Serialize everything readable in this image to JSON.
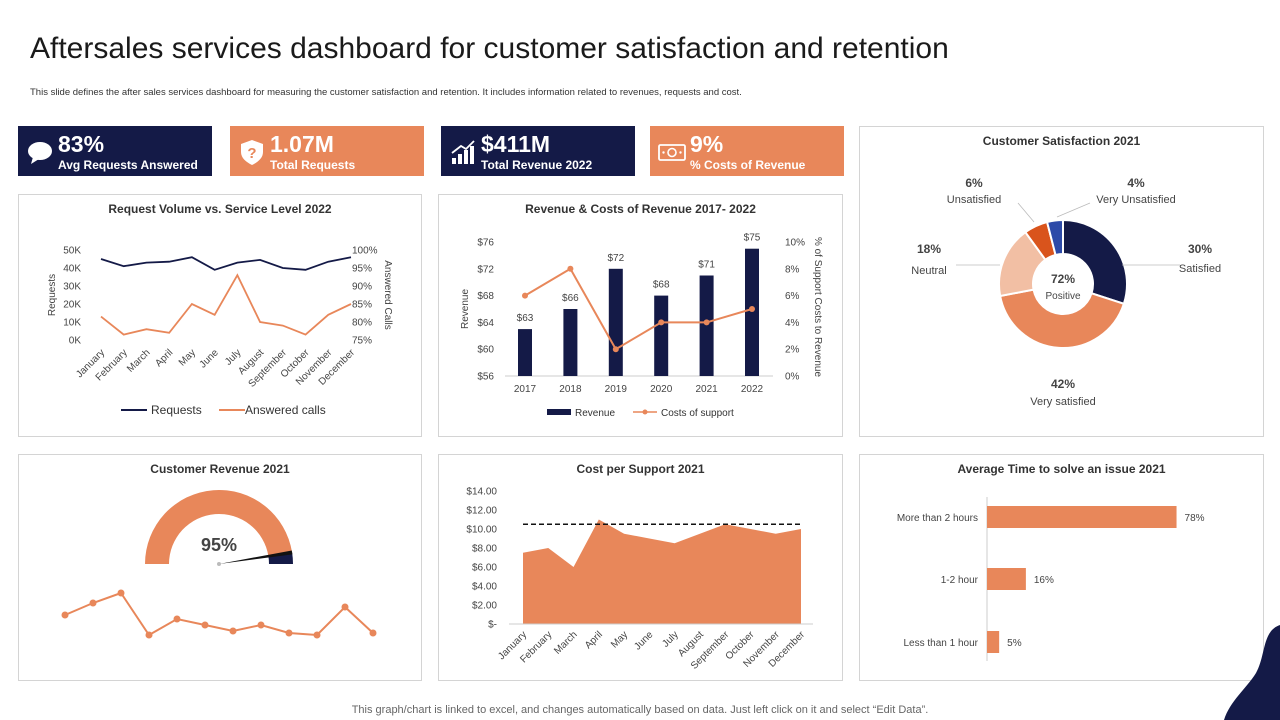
{
  "title": "Aftersales services dashboard for customer satisfaction and retention",
  "subtitle": "This slide defines the after sales services dashboard for measuring the customer satisfaction and retention. It includes information related to revenues, requests and cost.",
  "kpis": [
    {
      "value": "83%",
      "label": "Avg Requests Answered",
      "icon": "chat-bubble-icon",
      "color": "#141a47"
    },
    {
      "value": "1.07M",
      "label": "Total Requests",
      "icon": "shield-question-icon",
      "color": "#e8875a"
    },
    {
      "value": "$411M",
      "label": "Total Revenue 2022",
      "icon": "bar-growth-icon",
      "color": "#141a47"
    },
    {
      "value": "9%",
      "label": "% Costs of Revenue",
      "icon": "money-bill-icon",
      "color": "#e8875a"
    }
  ],
  "colors": {
    "navy": "#141a47",
    "orange": "#e8875a",
    "light_orange": "#f2bfa4",
    "dark_orange": "#d9541c",
    "blue": "#2d4aa8"
  },
  "footnote": "This graph/chart is linked to excel, and changes automatically based on data. Just left click on it and select “Edit Data”.",
  "chart_data": [
    {
      "id": "request-volume",
      "type": "line",
      "title": "Request Volume vs. Service Level 2022",
      "categories": [
        "January",
        "February",
        "March",
        "April",
        "May",
        "June",
        "July",
        "August",
        "September",
        "October",
        "November",
        "December"
      ],
      "ylabel": "Requests",
      "y2label": "Answered Calls",
      "ylim": [
        0,
        50000
      ],
      "y2lim": [
        75,
        100
      ],
      "yticks": [
        "0K",
        "10K",
        "20K",
        "30K",
        "40K",
        "50K"
      ],
      "y2ticks": [
        "75%",
        "80%",
        "85%",
        "90%",
        "95%",
        "100%"
      ],
      "series": [
        {
          "name": "Requests",
          "axis": "left",
          "values": [
            45000,
            41000,
            43000,
            43500,
            46000,
            39000,
            43000,
            44500,
            40000,
            39000,
            43500,
            46000
          ]
        },
        {
          "name": "Answered calls",
          "axis": "right",
          "values": [
            81.5,
            76.5,
            78,
            77,
            85,
            82,
            93,
            80,
            79,
            76.5,
            82,
            85
          ]
        }
      ],
      "legend": "bottom"
    },
    {
      "id": "revenue-costs",
      "type": "bar",
      "title": "Revenue & Costs of Revenue 2017- 2022",
      "categories": [
        "2017",
        "2018",
        "2019",
        "2020",
        "2021",
        "2022"
      ],
      "ylabel": "Revenue",
      "y2label": "% of Support Costs to Revenue",
      "ylim": [
        56,
        76
      ],
      "y2lim": [
        0,
        10
      ],
      "yticks": [
        "$56",
        "$60",
        "$64",
        "$68",
        "$72",
        "$76"
      ],
      "y2ticks": [
        "0%",
        "2%",
        "4%",
        "6%",
        "8%",
        "10%"
      ],
      "bar_labels": [
        "$63",
        "$66",
        "$72",
        "$68",
        "$71",
        "$75"
      ],
      "series": [
        {
          "name": "Revenue",
          "type": "bar",
          "values": [
            63,
            66,
            72,
            68,
            71,
            75
          ]
        },
        {
          "name": "Costs of support",
          "type": "line",
          "axis": "right",
          "values": [
            6,
            8,
            2,
            4,
            4,
            5
          ]
        }
      ],
      "legend": "bottom"
    },
    {
      "id": "customer-satisfaction",
      "type": "pie",
      "title": "Customer Satisfaction 2021",
      "center_value": "72%",
      "center_label": "Positive",
      "slices": [
        {
          "label": "Satisfied",
          "value": 30,
          "value_label": "30%"
        },
        {
          "label": "Very satisfied",
          "value": 42,
          "value_label": "42%"
        },
        {
          "label": "Neutral",
          "value": 18,
          "value_label": "18%"
        },
        {
          "label": "Unsatisfied",
          "value": 6,
          "value_label": "6%"
        },
        {
          "label": "Very Unsatisfied",
          "value": 4,
          "value_label": "4%"
        }
      ]
    },
    {
      "id": "customer-revenue",
      "type": "line",
      "title": "Customer Revenue 2021",
      "gauge_value": 95,
      "gauge_label": "95%",
      "values": [
        60,
        66,
        71,
        50,
        58,
        55,
        52,
        55,
        51,
        50,
        64,
        51
      ],
      "ylim": [
        40,
        80
      ]
    },
    {
      "id": "cost-per-support",
      "type": "area",
      "title": "Cost per Support 2021",
      "categories": [
        "January",
        "February",
        "March",
        "April",
        "May",
        "June",
        "July",
        "August",
        "September",
        "October",
        "November",
        "December"
      ],
      "ylim": [
        0,
        14
      ],
      "yticks": [
        "$-",
        "$2.00",
        "$4.00",
        "$6.00",
        "$8.00",
        "$10.00",
        "$12.00",
        "$14.00"
      ],
      "values": [
        7.5,
        8,
        6,
        11,
        9.5,
        9,
        8.5,
        9.5,
        10.5,
        10,
        9.5,
        10
      ],
      "target": 10.5
    },
    {
      "id": "avg-time",
      "type": "bar",
      "orientation": "horizontal",
      "title": "Average Time to solve an issue 2021",
      "categories": [
        "More than 2 hours",
        "1-2 hour",
        "Less than 1 hour"
      ],
      "values": [
        78,
        16,
        5
      ],
      "value_labels": [
        "78%",
        "16%",
        "5%"
      ],
      "xlim": [
        0,
        100
      ]
    }
  ]
}
